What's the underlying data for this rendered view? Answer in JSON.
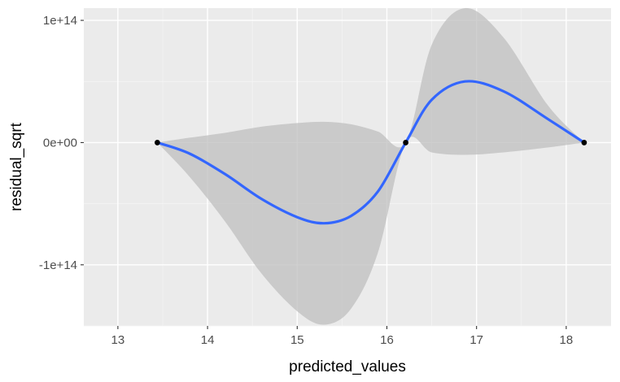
{
  "chart_data": {
    "type": "line",
    "title": "",
    "xlabel": "predicted_values",
    "ylabel": "residual_sqrt",
    "xlim": [
      12.62,
      18.5
    ],
    "ylim": [
      -150000000000000.0,
      110000000000000.0
    ],
    "x_ticks": [
      {
        "value": 13,
        "label": "13"
      },
      {
        "value": 14,
        "label": "14"
      },
      {
        "value": 15,
        "label": "15"
      },
      {
        "value": 16,
        "label": "16"
      },
      {
        "value": 17,
        "label": "17"
      },
      {
        "value": 18,
        "label": "18"
      }
    ],
    "y_ticks": [
      {
        "value": 100000000000000.0,
        "label": "1e+14"
      },
      {
        "value": 0,
        "label": "0e+00"
      },
      {
        "value": -100000000000000.0,
        "label": "-1e+14"
      }
    ],
    "grid": true,
    "points": [
      {
        "x": 13.44,
        "y": 0
      },
      {
        "x": 16.21,
        "y": 0
      },
      {
        "x": 18.2,
        "y": 0
      }
    ],
    "smooth": [
      {
        "x": 13.44,
        "y": 0
      },
      {
        "x": 13.8,
        "y": -9000000000000.0
      },
      {
        "x": 14.2,
        "y": -26000000000000.0
      },
      {
        "x": 14.6,
        "y": -46000000000000.0
      },
      {
        "x": 15.0,
        "y": -61000000000000.0
      },
      {
        "x": 15.3,
        "y": -66000000000000.0
      },
      {
        "x": 15.6,
        "y": -60000000000000.0
      },
      {
        "x": 15.9,
        "y": -40000000000000.0
      },
      {
        "x": 16.21,
        "y": 0
      },
      {
        "x": 16.5,
        "y": 35000000000000.0
      },
      {
        "x": 16.87,
        "y": 50000000000000.0
      },
      {
        "x": 17.3,
        "y": 42000000000000.0
      },
      {
        "x": 17.8,
        "y": 19000000000000.0
      },
      {
        "x": 18.2,
        "y": 0
      }
    ],
    "confidence_band": {
      "upper": [
        {
          "x": 13.44,
          "y": 0
        },
        {
          "x": 13.8,
          "y": 4000000000000.0
        },
        {
          "x": 14.2,
          "y": 8000000000000.0
        },
        {
          "x": 14.6,
          "y": 13000000000000.0
        },
        {
          "x": 15.0,
          "y": 16000000000000.0
        },
        {
          "x": 15.3,
          "y": 17000000000000.0
        },
        {
          "x": 15.6,
          "y": 15000000000000.0
        },
        {
          "x": 15.9,
          "y": 9000000000000.0
        },
        {
          "x": 16.21,
          "y": 0
        },
        {
          "x": 16.5,
          "y": 80000000000000.0
        },
        {
          "x": 16.87,
          "y": 110000000000000.0
        },
        {
          "x": 17.3,
          "y": 86000000000000.0
        },
        {
          "x": 17.8,
          "y": 30000000000000.0
        },
        {
          "x": 18.2,
          "y": 0
        }
      ],
      "lower": [
        {
          "x": 13.44,
          "y": 0
        },
        {
          "x": 13.8,
          "y": -28000000000000.0
        },
        {
          "x": 14.2,
          "y": -65000000000000.0
        },
        {
          "x": 14.6,
          "y": -107000000000000.0
        },
        {
          "x": 15.0,
          "y": -138000000000000.0
        },
        {
          "x": 15.3,
          "y": -149000000000000.0
        },
        {
          "x": 15.6,
          "y": -136000000000000.0
        },
        {
          "x": 15.9,
          "y": -90000000000000.0
        },
        {
          "x": 16.21,
          "y": 0
        },
        {
          "x": 16.5,
          "y": -8000000000000.0
        },
        {
          "x": 16.87,
          "y": -10000000000000.0
        },
        {
          "x": 17.3,
          "y": -8000000000000.0
        },
        {
          "x": 17.8,
          "y": -4000000000000.0
        },
        {
          "x": 18.2,
          "y": 0
        }
      ]
    },
    "colors": {
      "panel_background": "#ebebeb",
      "grid_major": "#ffffff",
      "grid_minor": "#f5f5f5",
      "smooth_line": "#3366ff",
      "band_fill": "#bdbdbd",
      "points": "#000000"
    }
  }
}
